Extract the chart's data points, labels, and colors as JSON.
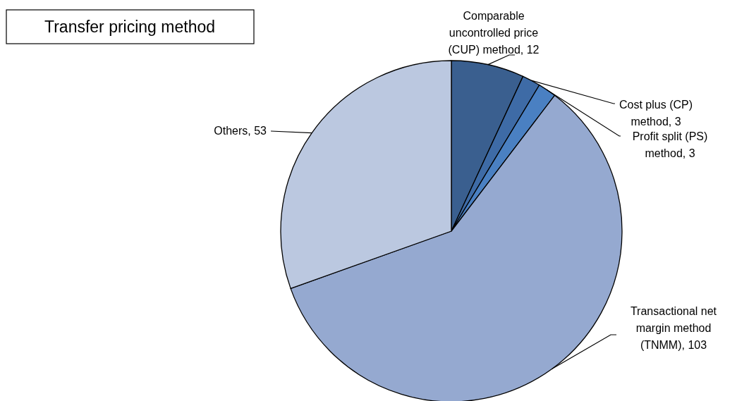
{
  "chart_data": {
    "type": "pie",
    "title": "Transfer pricing method",
    "categories": [
      "Comparable uncontrolled price (CUP) method",
      "Cost plus (CP) method",
      "Profit split (PS) method",
      "Transactional net margin method (TNMM)",
      "Others"
    ],
    "values": [
      12,
      3,
      3,
      103,
      53
    ],
    "colors": [
      "#3a5f8f",
      "#3e6ba6",
      "#4a80c2",
      "#95a9d0",
      "#bbc8e0"
    ],
    "value_labels": [
      ", 12",
      ", 3",
      ", 3",
      ", 103",
      ", 53"
    ]
  }
}
